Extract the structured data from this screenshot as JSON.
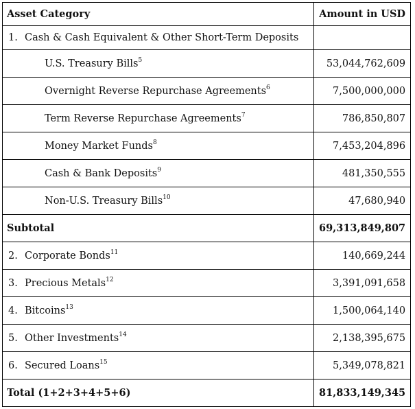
{
  "headers": {
    "category": "Asset Category",
    "amount": "Amount in USD"
  },
  "section1": {
    "num": "1.",
    "label": "Cash & Cash Equivalent & Other Short-Term Deposits"
  },
  "subitems": [
    {
      "label": "U.S. Treasury Bills",
      "note": "5",
      "amount": "53,044,762,609"
    },
    {
      "label": "Overnight Reverse Repurchase Agreements",
      "note": "6",
      "amount": "7,500,000,000"
    },
    {
      "label": "Term Reverse Repurchase Agreements",
      "note": "7",
      "amount": "786,850,807"
    },
    {
      "label": "Money Market Funds",
      "note": "8",
      "amount": "7,453,204,896"
    },
    {
      "label": "Cash & Bank Deposits",
      "note": "9",
      "amount": "481,350,555"
    },
    {
      "label": "Non-U.S. Treasury Bills",
      "note": "10",
      "amount": "47,680,940"
    }
  ],
  "subtotal": {
    "label": "Subtotal",
    "amount": "69,313,849,807"
  },
  "items": [
    {
      "num": "2.",
      "label": "Corporate Bonds",
      "note": "11",
      "amount": "140,669,244"
    },
    {
      "num": "3.",
      "label": "Precious Metals",
      "note": "12",
      "amount": "3,391,091,658"
    },
    {
      "num": "4.",
      "label": "Bitcoins",
      "note": "13",
      "amount": "1,500,064,140"
    },
    {
      "num": "5.",
      "label": "Other Investments",
      "note": "14",
      "amount": "2,138,395,675"
    },
    {
      "num": "6.",
      "label": "Secured Loans",
      "note": "15",
      "amount": "5,349,078,821"
    }
  ],
  "total": {
    "label": "Total (1+2+3+4+5+6)",
    "amount": "81,833,149,345"
  }
}
